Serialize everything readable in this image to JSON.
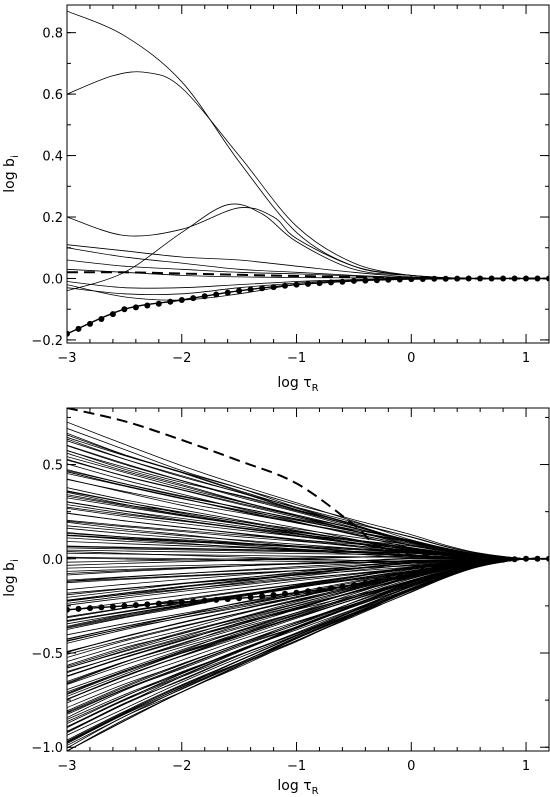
{
  "chart_data": [
    {
      "type": "line",
      "xlabel": "log τ",
      "xlabel_sub": "R",
      "ylabel": "log b",
      "ylabel_sub": "i",
      "xlim": [
        -3,
        1.2
      ],
      "ylim": [
        -0.21,
        0.89
      ],
      "xticks": [
        -3,
        -2,
        -1,
        0,
        1
      ],
      "xtick_labels": [
        "−3",
        "−2",
        "−1",
        "0",
        "1"
      ],
      "yticks": [
        -0.2,
        0.0,
        0.2,
        0.4,
        0.6,
        0.8
      ],
      "ytick_labels": [
        "−0.2",
        "0.0",
        "0.2",
        "0.4",
        "0.6",
        "0.8"
      ],
      "series": [
        {
          "style": "solid",
          "x": [
            -3,
            -2.5,
            -2,
            -1.5,
            -1,
            -0.5,
            0,
            0.5,
            1,
            1.2
          ],
          "y": [
            0.87,
            0.79,
            0.64,
            0.38,
            0.15,
            0.04,
            0.01,
            0.0,
            0.0,
            0.0
          ]
        },
        {
          "style": "solid",
          "x": [
            -3,
            -2.6,
            -2.3,
            -2,
            -1.5,
            -1,
            -0.5,
            0,
            0.5,
            1,
            1.2
          ],
          "y": [
            0.6,
            0.66,
            0.67,
            0.62,
            0.4,
            0.17,
            0.05,
            0.01,
            0.0,
            0.0,
            0.0
          ]
        },
        {
          "style": "solid",
          "x": [
            -3,
            -2.5,
            -2,
            -1.6,
            -1.3,
            -1,
            -0.5,
            0,
            0.5,
            1,
            1.2
          ],
          "y": [
            -0.04,
            0.02,
            0.15,
            0.24,
            0.21,
            0.12,
            0.03,
            0.01,
            0.0,
            0.0,
            0.0
          ]
        },
        {
          "style": "solid",
          "x": [
            -3,
            -2.5,
            -2,
            -1.5,
            -1.2,
            -1,
            -0.5,
            0,
            0.5,
            1,
            1.2
          ],
          "y": [
            0.2,
            0.14,
            0.16,
            0.23,
            0.2,
            0.13,
            0.04,
            0.01,
            0.0,
            0.0,
            0.0
          ]
        },
        {
          "style": "solid",
          "x": [
            -3,
            -2.5,
            -2,
            -1.5,
            -1,
            -0.5,
            0,
            0.5,
            1,
            1.2
          ],
          "y": [
            0.11,
            0.09,
            0.07,
            0.06,
            0.04,
            0.02,
            0.005,
            0.0,
            0.0,
            0.0
          ]
        },
        {
          "style": "solid",
          "x": [
            -3,
            -2.5,
            -2,
            -1.5,
            -1,
            -0.5,
            0,
            0.5,
            1,
            1.2
          ],
          "y": [
            0.1,
            0.07,
            0.05,
            0.03,
            0.02,
            0.01,
            0.003,
            0.0,
            0.0,
            0.0
          ]
        },
        {
          "style": "solid",
          "x": [
            -3,
            -2.5,
            -2,
            -1.5,
            -1,
            -0.5,
            0,
            0.5,
            1,
            1.2
          ],
          "y": [
            0.06,
            0.04,
            0.03,
            0.02,
            0.015,
            0.008,
            0.003,
            0.0,
            0.0,
            0.0
          ]
        },
        {
          "style": "solid",
          "x": [
            -3,
            -2.5,
            -2,
            -1.5,
            -1,
            -0.5,
            0,
            0.5,
            1,
            1.2
          ],
          "y": [
            0.03,
            0.02,
            0.01,
            0.005,
            0.003,
            0.002,
            0.001,
            0.0,
            0.0,
            0.0
          ]
        },
        {
          "style": "solid",
          "x": [
            -3,
            -2.5,
            -2,
            -1.5,
            -1,
            -0.5,
            0,
            0.5,
            1,
            1.2
          ],
          "y": [
            -0.01,
            -0.03,
            -0.03,
            -0.02,
            -0.01,
            -0.004,
            -0.001,
            0.0,
            0.0,
            0.0
          ]
        },
        {
          "style": "solid",
          "x": [
            -3,
            -2.5,
            -2,
            -1.5,
            -1,
            -0.5,
            0,
            0.5,
            1,
            1.2
          ],
          "y": [
            -0.03,
            -0.05,
            -0.05,
            -0.03,
            -0.015,
            -0.005,
            -0.001,
            0.0,
            0.0,
            0.0
          ]
        },
        {
          "style": "solid",
          "x": [
            -3,
            -2.5,
            -2,
            -1.5,
            -1,
            -0.5,
            0,
            0.5,
            1,
            1.2
          ],
          "y": [
            -0.02,
            -0.06,
            -0.07,
            -0.05,
            -0.02,
            -0.007,
            -0.002,
            0.0,
            0.0,
            0.0
          ]
        },
        {
          "style": "dashed",
          "x": [
            -3,
            -2.5,
            -2,
            -1.5,
            -1,
            -0.5,
            0,
            0.5,
            1,
            1.2
          ],
          "y": [
            0.02,
            0.02,
            0.016,
            0.012,
            0.008,
            0.004,
            0.002,
            0.0,
            0.0,
            0.0
          ]
        },
        {
          "style": "dotted",
          "x": [
            -3,
            -2.5,
            -2,
            -1.5,
            -1,
            -0.5,
            0,
            0.5,
            1,
            1.2
          ],
          "y": [
            -0.18,
            -0.1,
            -0.07,
            -0.04,
            -0.02,
            -0.008,
            -0.002,
            0.0,
            0.0,
            0.0
          ]
        }
      ]
    },
    {
      "type": "line",
      "xlabel": "log τ",
      "xlabel_sub": "R",
      "ylabel": "log b",
      "ylabel_sub": "i",
      "xlim": [
        -3,
        1.2
      ],
      "ylim": [
        -1.02,
        0.8
      ],
      "xticks": [
        -3,
        -2,
        -1,
        0,
        1
      ],
      "xtick_labels": [
        "−3",
        "−2",
        "−1",
        "0",
        "1"
      ],
      "yticks": [
        -1.0,
        -0.5,
        0.0,
        0.5
      ],
      "ytick_labels": [
        "−1.0",
        "−0.5",
        "0.0",
        "0.5"
      ],
      "curve_bundle": {
        "count": 150,
        "x": [
          -3,
          0,
          0.6,
          1.2
        ],
        "y_at_x_min": [
          -1.02,
          0.7
        ],
        "note": "band of statistical-equilibrium departure coefficients converging to 0 at large depth"
      },
      "series": [
        {
          "style": "dashed",
          "x": [
            -3,
            -2.5,
            -2,
            -1.5,
            -1,
            -0.5,
            -0.3,
            0,
            0.3,
            0.6,
            1,
            1.2
          ],
          "y": [
            0.8,
            0.73,
            0.63,
            0.52,
            0.4,
            0.18,
            0.07,
            0.02,
            0.03,
            0.01,
            0.0,
            0.0
          ]
        },
        {
          "style": "dotted",
          "x": [
            -3,
            -2.5,
            -2,
            -1.5,
            -1,
            -0.5,
            0,
            0.3,
            0.6,
            1,
            1.2
          ],
          "y": [
            -0.27,
            -0.25,
            -0.23,
            -0.21,
            -0.18,
            -0.14,
            -0.08,
            -0.03,
            -0.01,
            0.0,
            0.0
          ]
        }
      ]
    }
  ]
}
